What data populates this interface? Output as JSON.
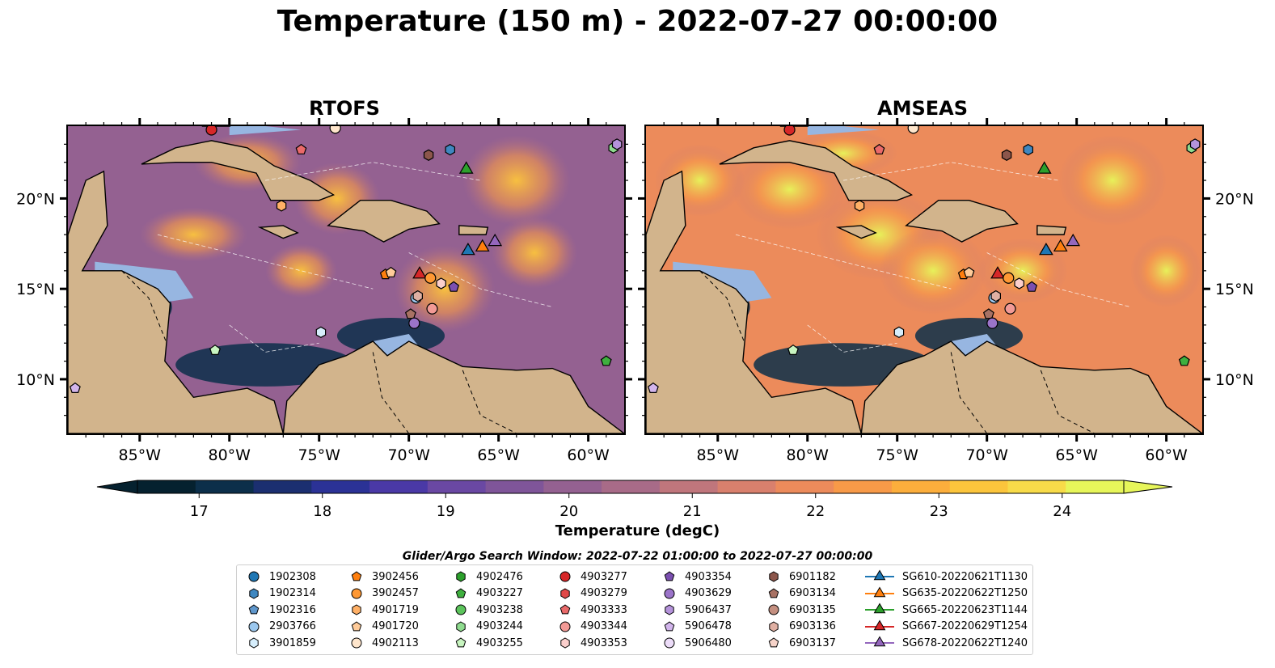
{
  "title": "Temperature (150 m) - 2022-07-27 00:00:00",
  "panels": [
    {
      "title": "RTOFS"
    },
    {
      "title": "AMSEAS"
    }
  ],
  "map": {
    "lon_range": [
      -89,
      -58
    ],
    "lat_range": [
      7,
      24
    ],
    "lon_ticks": [
      {
        "lon": -85,
        "label": "85°W"
      },
      {
        "lon": -80,
        "label": "80°W"
      },
      {
        "lon": -75,
        "label": "75°W"
      },
      {
        "lon": -70,
        "label": "70°W"
      },
      {
        "lon": -65,
        "label": "65°W"
      },
      {
        "lon": -60,
        "label": "60°W"
      }
    ],
    "lat_ticks": [
      {
        "lat": 20,
        "label": "20°N"
      },
      {
        "lat": 15,
        "label": "15°N"
      },
      {
        "lat": 10,
        "label": "10°N"
      }
    ],
    "land_color": "#d2b48c",
    "shallow_color": "#97b6e1"
  },
  "colorbar": {
    "label": "Temperature (degC)",
    "min": 16.5,
    "max": 24.5,
    "ticks": [
      "17",
      "18",
      "19",
      "20",
      "21",
      "22",
      "23",
      "24"
    ],
    "colors": [
      "#05212f",
      "#0c2f4a",
      "#1b2f70",
      "#2b3296",
      "#4a39a6",
      "#6a48a3",
      "#7f5599",
      "#946191",
      "#a86b88",
      "#c0767c",
      "#d9806d",
      "#ec8b5b",
      "#f89a48",
      "#fcae3c",
      "#fcc53c",
      "#f8db49",
      "#e7f65a"
    ]
  },
  "search_window": "Glider/Argo Search Window: 2022-07-22 01:00:00 to 2022-07-27 00:00:00",
  "legend": [
    {
      "label": "1902308",
      "shape": "circle",
      "color": "#1f77b4"
    },
    {
      "label": "1902314",
      "shape": "hexagon",
      "color": "#3f87c0"
    },
    {
      "label": "1902316",
      "shape": "pentagon",
      "color": "#5f97cc"
    },
    {
      "label": "2903766",
      "shape": "circle",
      "color": "#9cc8ee"
    },
    {
      "label": "3901859",
      "shape": "hexagon",
      "color": "#d6eefc"
    },
    {
      "label": "3902456",
      "shape": "pentagon",
      "color": "#ff7f0e"
    },
    {
      "label": "3902457",
      "shape": "circle",
      "color": "#ff9833"
    },
    {
      "label": "4901719",
      "shape": "hexagon",
      "color": "#ffb066"
    },
    {
      "label": "4901720",
      "shape": "pentagon",
      "color": "#ffcb99"
    },
    {
      "label": "4902113",
      "shape": "circle",
      "color": "#ffe6cc"
    },
    {
      "label": "4902476",
      "shape": "hexagon",
      "color": "#2ca02c"
    },
    {
      "label": "4903227",
      "shape": "pentagon",
      "color": "#3fb03f"
    },
    {
      "label": "4903238",
      "shape": "circle",
      "color": "#5cc45c"
    },
    {
      "label": "4903244",
      "shape": "hexagon",
      "color": "#8fdc8f"
    },
    {
      "label": "4903255",
      "shape": "pentagon",
      "color": "#c8f5c0"
    },
    {
      "label": "4903277",
      "shape": "circle",
      "color": "#d62728"
    },
    {
      "label": "4903279",
      "shape": "hexagon",
      "color": "#e04848"
    },
    {
      "label": "4903333",
      "shape": "pentagon",
      "color": "#ea6a6a"
    },
    {
      "label": "4903344",
      "shape": "circle",
      "color": "#f29a96"
    },
    {
      "label": "4903353",
      "shape": "hexagon",
      "color": "#fbcfcc"
    },
    {
      "label": "4903354",
      "shape": "pentagon",
      "color": "#7b4fb0"
    },
    {
      "label": "4903629",
      "shape": "circle",
      "color": "#9b74c9"
    },
    {
      "label": "5906437",
      "shape": "hexagon",
      "color": "#b593db"
    },
    {
      "label": "5906478",
      "shape": "pentagon",
      "color": "#d2b5ec"
    },
    {
      "label": "5906480",
      "shape": "circle",
      "color": "#ecdcf8"
    },
    {
      "label": "6901182",
      "shape": "hexagon",
      "color": "#8c564b"
    },
    {
      "label": "6903134",
      "shape": "pentagon",
      "color": "#a87264"
    },
    {
      "label": "6903135",
      "shape": "circle",
      "color": "#c48f80"
    },
    {
      "label": "6903136",
      "shape": "hexagon",
      "color": "#e0b0a3"
    },
    {
      "label": "6903137",
      "shape": "pentagon",
      "color": "#f6d3c9"
    },
    {
      "label": "SG610-20220621T1130",
      "shape": "triangle",
      "color": "#1f77b4"
    },
    {
      "label": "SG635-20220622T1250",
      "shape": "triangle",
      "color": "#ff7f0e"
    },
    {
      "label": "SG665-20220623T1144",
      "shape": "triangle",
      "color": "#2ca02c"
    },
    {
      "label": "SG667-20220629T1254",
      "shape": "triangle",
      "color": "#d62728"
    },
    {
      "label": "SG678-20220622T1240",
      "shape": "triangle",
      "color": "#9467bd"
    }
  ],
  "observations": [
    {
      "id": "4903277",
      "lon": -81,
      "lat": 23.8
    },
    {
      "id": "4903333",
      "lon": -76.0,
      "lat": 22.7
    },
    {
      "id": "4902113",
      "lon": -74.1,
      "lat": 23.9
    },
    {
      "id": "6901182",
      "lon": -68.9,
      "lat": 22.4
    },
    {
      "id": "1902314",
      "lon": -67.7,
      "lat": 22.7
    },
    {
      "id": "4903244",
      "lon": -58.6,
      "lat": 22.8
    },
    {
      "id": "5906437",
      "lon": -58.4,
      "lat": 23.0
    },
    {
      "id": "4901719",
      "lon": -77.1,
      "lat": 19.6
    },
    {
      "id": "SG665-20220623T1144",
      "lon": -66.8,
      "lat": 21.6
    },
    {
      "id": "SG610-20220621T1130",
      "lon": -66.7,
      "lat": 17.1
    },
    {
      "id": "SG635-20220622T1250",
      "lon": -65.9,
      "lat": 17.3
    },
    {
      "id": "SG678-20220622T1240",
      "lon": -65.2,
      "lat": 17.6
    },
    {
      "id": "3902456",
      "lon": -71.3,
      "lat": 15.8
    },
    {
      "id": "4901720",
      "lon": -71.0,
      "lat": 15.9
    },
    {
      "id": "SG667-20220629T1254",
      "lon": -69.4,
      "lat": 15.8
    },
    {
      "id": "3902457",
      "lon": -68.8,
      "lat": 15.6
    },
    {
      "id": "4903353",
      "lon": -68.2,
      "lat": 15.3
    },
    {
      "id": "4903354",
      "lon": -67.5,
      "lat": 15.1
    },
    {
      "id": "2903766",
      "lon": -69.6,
      "lat": 14.5
    },
    {
      "id": "6903136",
      "lon": -69.5,
      "lat": 14.6
    },
    {
      "id": "4903344",
      "lon": -68.7,
      "lat": 13.9
    },
    {
      "id": "6903134",
      "lon": -69.9,
      "lat": 13.6
    },
    {
      "id": "4903629",
      "lon": -69.7,
      "lat": 13.1
    },
    {
      "id": "3901859",
      "lon": -74.9,
      "lat": 12.6
    },
    {
      "id": "4903255",
      "lon": -80.8,
      "lat": 11.6
    },
    {
      "id": "4903227",
      "lon": -59.0,
      "lat": 11.0
    },
    {
      "id": "5906478",
      "lon": -88.6,
      "lat": 9.5
    }
  ]
}
